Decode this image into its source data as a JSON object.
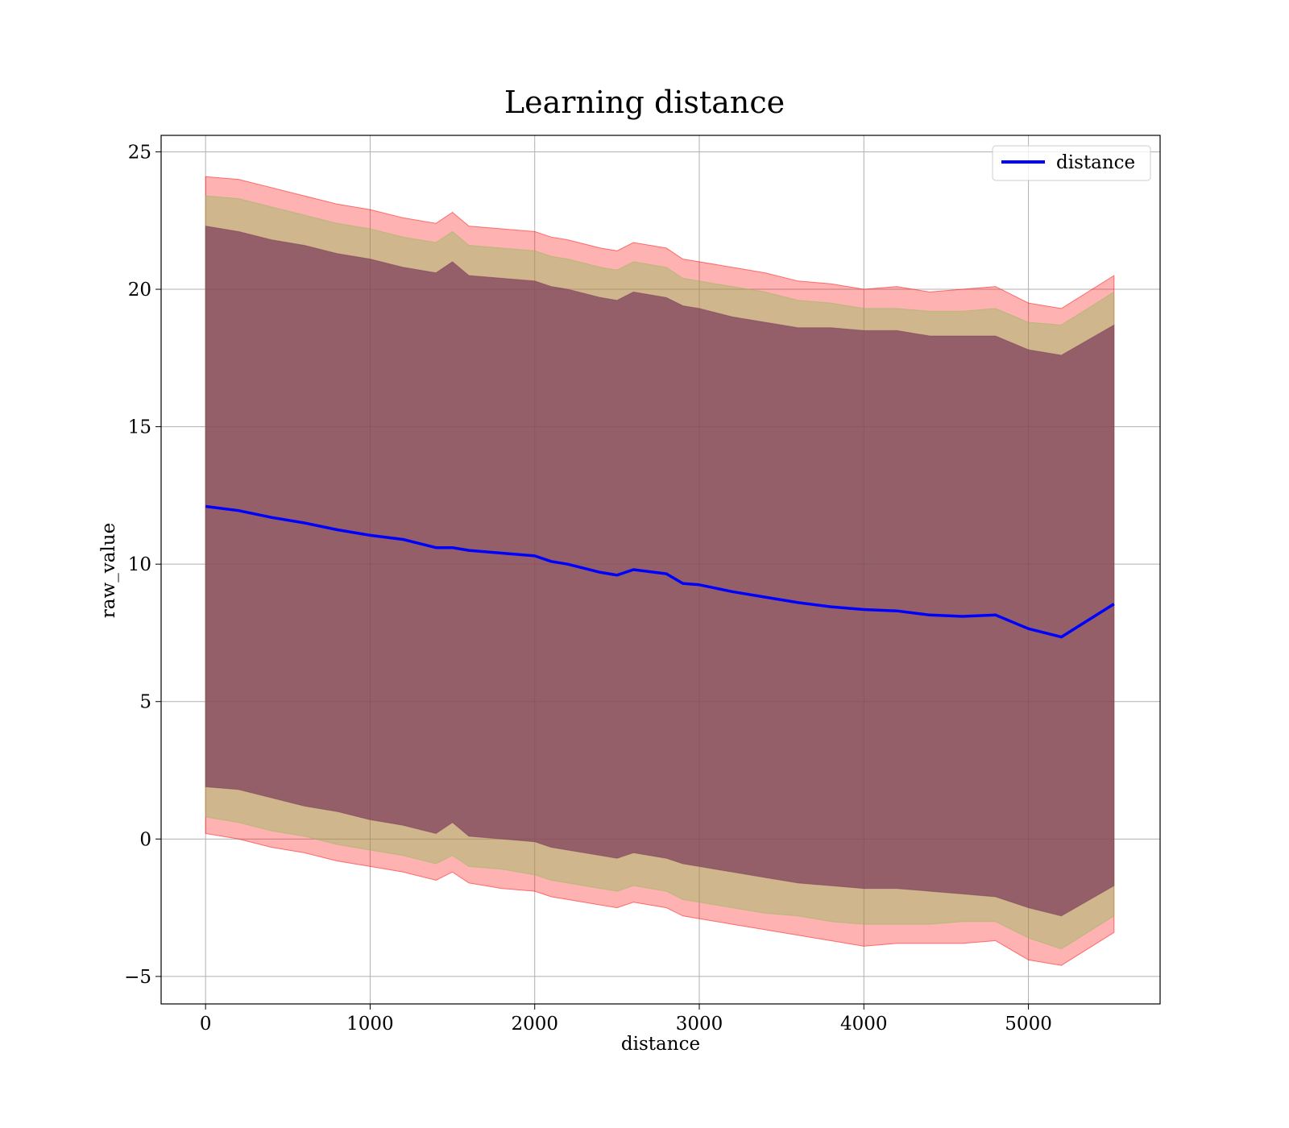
{
  "chart_data": {
    "type": "area",
    "title": "Learning distance",
    "xlabel": "distance",
    "ylabel": "raw_value",
    "xlim": [
      -270,
      5800
    ],
    "ylim": [
      -6,
      25.6
    ],
    "xticks": [
      0,
      1000,
      2000,
      3000,
      4000,
      5000
    ],
    "yticks": [
      -5,
      0,
      5,
      10,
      15,
      20,
      25
    ],
    "grid": true,
    "legend": {
      "placement": "top-right",
      "entries": [
        "distance"
      ]
    },
    "colors": {
      "line": "#0000ff",
      "band_outer": "#ff0000",
      "band_middle": "#8fbc5a",
      "band_inner": "#7a3a5a"
    },
    "x": [
      0,
      200,
      400,
      600,
      800,
      1000,
      1200,
      1400,
      1500,
      1600,
      1800,
      2000,
      2100,
      2200,
      2400,
      2500,
      2600,
      2800,
      2900,
      3000,
      3200,
      3400,
      3600,
      3800,
      4000,
      4200,
      4400,
      4600,
      4800,
      5000,
      5200,
      5520
    ],
    "series": [
      {
        "name": "distance",
        "values": [
          12.1,
          11.95,
          11.7,
          11.5,
          11.25,
          11.05,
          10.9,
          10.6,
          10.6,
          10.5,
          10.4,
          10.3,
          10.1,
          10.0,
          9.7,
          9.6,
          9.8,
          9.65,
          9.3,
          9.25,
          9.0,
          8.8,
          8.6,
          8.45,
          8.35,
          8.3,
          8.15,
          8.1,
          8.15,
          7.65,
          7.35,
          8.55
        ]
      }
    ],
    "bands": [
      {
        "lower": [
          0.2,
          0.0,
          -0.3,
          -0.5,
          -0.8,
          -1.0,
          -1.2,
          -1.5,
          -1.2,
          -1.6,
          -1.8,
          -1.9,
          -2.1,
          -2.2,
          -2.4,
          -2.5,
          -2.3,
          -2.5,
          -2.8,
          -2.9,
          -3.1,
          -3.3,
          -3.5,
          -3.7,
          -3.9,
          -3.8,
          -3.8,
          -3.8,
          -3.7,
          -4.4,
          -4.6,
          -3.4
        ],
        "upper": [
          24.1,
          24.0,
          23.7,
          23.4,
          23.1,
          22.9,
          22.6,
          22.4,
          22.8,
          22.3,
          22.2,
          22.1,
          21.9,
          21.8,
          21.5,
          21.4,
          21.7,
          21.5,
          21.1,
          21.0,
          20.8,
          20.6,
          20.3,
          20.2,
          20.0,
          20.1,
          19.9,
          20.0,
          20.1,
          19.5,
          19.3,
          20.5
        ]
      },
      {
        "lower": [
          0.8,
          0.6,
          0.3,
          0.1,
          -0.2,
          -0.4,
          -0.6,
          -0.9,
          -0.6,
          -1.0,
          -1.1,
          -1.3,
          -1.5,
          -1.6,
          -1.8,
          -1.9,
          -1.7,
          -1.9,
          -2.2,
          -2.3,
          -2.5,
          -2.7,
          -2.8,
          -3.0,
          -3.1,
          -3.1,
          -3.1,
          -3.0,
          -3.0,
          -3.6,
          -4.0,
          -2.8
        ],
        "upper": [
          23.4,
          23.3,
          23.0,
          22.7,
          22.4,
          22.2,
          21.9,
          21.7,
          22.1,
          21.6,
          21.5,
          21.4,
          21.2,
          21.1,
          20.8,
          20.7,
          21.0,
          20.8,
          20.4,
          20.3,
          20.1,
          19.9,
          19.6,
          19.5,
          19.3,
          19.3,
          19.2,
          19.2,
          19.3,
          18.8,
          18.7,
          19.9
        ]
      },
      {
        "lower": [
          1.9,
          1.8,
          1.5,
          1.2,
          1.0,
          0.7,
          0.5,
          0.2,
          0.6,
          0.1,
          0.0,
          -0.1,
          -0.3,
          -0.4,
          -0.6,
          -0.7,
          -0.5,
          -0.7,
          -0.9,
          -1.0,
          -1.2,
          -1.4,
          -1.6,
          -1.7,
          -1.8,
          -1.8,
          -1.9,
          -2.0,
          -2.1,
          -2.5,
          -2.8,
          -1.7
        ],
        "upper": [
          22.3,
          22.1,
          21.8,
          21.6,
          21.3,
          21.1,
          20.8,
          20.6,
          21.0,
          20.5,
          20.4,
          20.3,
          20.1,
          20.0,
          19.7,
          19.6,
          19.9,
          19.7,
          19.4,
          19.3,
          19.0,
          18.8,
          18.6,
          18.6,
          18.5,
          18.5,
          18.3,
          18.3,
          18.3,
          17.8,
          17.6,
          18.7
        ]
      }
    ]
  }
}
